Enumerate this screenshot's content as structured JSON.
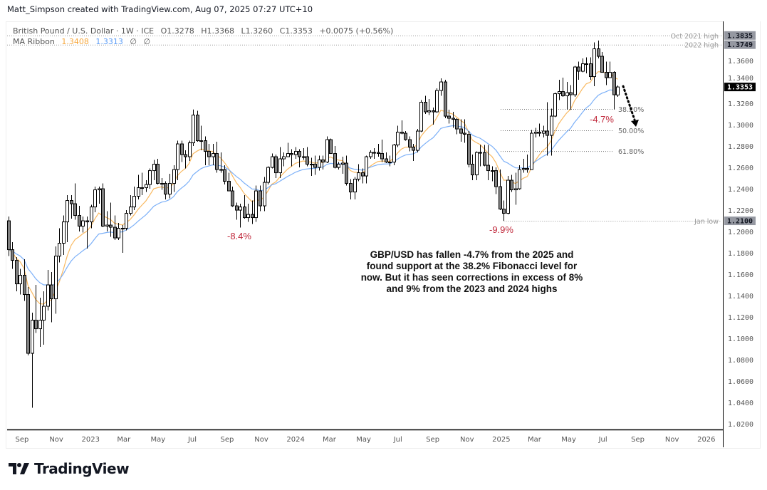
{
  "header": {
    "credit": "Matt_Simpson created with TradingView.com, Aug 07, 2025 07:27 UTC+10"
  },
  "legend": {
    "symbol": "British Pound / U.S. Dollar · 1W · ICE",
    "open": "O1.3278",
    "high": "H1.3368",
    "low": "L1.3260",
    "close": "C1.3353",
    "change": "+0.0075 (+0.56%)",
    "indicator": "MA Ribbon",
    "ma_fast": "1.3408",
    "ma_slow": "1.3313",
    "na1": "∅",
    "na2": "∅"
  },
  "annotations": {
    "note": "GBP/USD has fallen -4.7% from the 2025 and found support at the 38.2% Fibonacci level for now. But it has seen corrections in excess of 8% and 9% from the 2023 and 2024 highs",
    "pct_2023": "-8.4%",
    "pct_2024": "-9.9%",
    "pct_2025": "-4.7%"
  },
  "logo": {
    "text": "TradingView"
  },
  "colors": {
    "ma_fast": "#f7a73a",
    "ma_slow": "#5b9cf6",
    "bear_fill": "#808080",
    "bull_fill": "#ffffff",
    "pct": "#c0283b",
    "last_price_bg": "#000000",
    "level_bg": "#9598a1"
  },
  "chart_data": {
    "type": "candlestick",
    "title": "British Pound / U.S. Dollar · 1W · ICE",
    "xlim": [
      "2022-08-13",
      "2026-02-07"
    ],
    "ylim": [
      1.0147,
      1.3967
    ],
    "grid": false,
    "last_price": "1.3353",
    "y_ticks": [
      "1.3600",
      "1.3400",
      "1.3200",
      "1.3000",
      "1.2800",
      "1.2600",
      "1.2400",
      "1.2200",
      "1.2000",
      "1.1800",
      "1.1600",
      "1.1400",
      "1.1200",
      "1.1000",
      "1.0800",
      "1.0600",
      "1.0400",
      "1.0200"
    ],
    "x_ticks": [
      {
        "label": "Sep",
        "date": "2022-09-01"
      },
      {
        "label": "Nov",
        "date": "2022-11-01"
      },
      {
        "label": "2023",
        "date": "2023-01-01"
      },
      {
        "label": "Mar",
        "date": "2023-03-01"
      },
      {
        "label": "May",
        "date": "2023-05-01"
      },
      {
        "label": "Jul",
        "date": "2023-07-01"
      },
      {
        "label": "Sep",
        "date": "2023-09-01"
      },
      {
        "label": "Nov",
        "date": "2023-11-01"
      },
      {
        "label": "2024",
        "date": "2024-01-01"
      },
      {
        "label": "Mar",
        "date": "2024-03-01"
      },
      {
        "label": "May",
        "date": "2024-05-01"
      },
      {
        "label": "Jul",
        "date": "2024-07-01"
      },
      {
        "label": "Sep",
        "date": "2024-09-01"
      },
      {
        "label": "Nov",
        "date": "2024-11-01"
      },
      {
        "label": "2025",
        "date": "2025-01-01"
      },
      {
        "label": "Mar",
        "date": "2025-03-01"
      },
      {
        "label": "May",
        "date": "2025-05-01"
      },
      {
        "label": "Jul",
        "date": "2025-07-01"
      },
      {
        "label": "Sep",
        "date": "2025-09-01"
      },
      {
        "label": "Nov",
        "date": "2025-11-01"
      },
      {
        "label": "2026",
        "date": "2026-01-01"
      }
    ],
    "levels": [
      {
        "label": "Oct 2021 high",
        "price": "1.3835",
        "full": true
      },
      {
        "label": "2022 high",
        "price": "1.3749",
        "full": true
      },
      {
        "label": "Jan low",
        "price": "1.2100",
        "full": false
      }
    ],
    "fib_levels": [
      {
        "label": "38.20%",
        "price": 1.3147
      },
      {
        "label": "50.00%",
        "price": 1.2947
      },
      {
        "label": "61.80%",
        "price": 1.2753
      }
    ],
    "candles": [
      [
        "2022-08-15",
        1.21,
        1.214,
        1.177,
        1.183
      ],
      [
        "2022-08-22",
        1.183,
        1.19,
        1.165,
        1.173
      ],
      [
        "2022-08-29",
        1.173,
        1.176,
        1.144,
        1.151
      ],
      [
        "2022-09-05",
        1.151,
        1.165,
        1.141,
        1.159
      ],
      [
        "2022-09-12",
        1.159,
        1.174,
        1.135,
        1.141
      ],
      [
        "2022-09-19",
        1.141,
        1.148,
        1.084,
        1.086
      ],
      [
        "2022-09-26",
        1.086,
        1.124,
        1.035,
        1.117
      ],
      [
        "2022-10-03",
        1.117,
        1.15,
        1.105,
        1.109
      ],
      [
        "2022-10-10",
        1.109,
        1.138,
        1.092,
        1.117
      ],
      [
        "2022-10-17",
        1.117,
        1.144,
        1.094,
        1.13
      ],
      [
        "2022-10-24",
        1.13,
        1.164,
        1.126,
        1.15
      ],
      [
        "2022-10-31",
        1.15,
        1.162,
        1.115,
        1.137
      ],
      [
        "2022-11-07",
        1.137,
        1.186,
        1.123,
        1.177
      ],
      [
        "2022-11-14",
        1.177,
        1.203,
        1.171,
        1.189
      ],
      [
        "2022-11-21",
        1.189,
        1.215,
        1.178,
        1.209
      ],
      [
        "2022-11-28",
        1.209,
        1.234,
        1.19,
        1.229
      ],
      [
        "2022-12-05",
        1.229,
        1.234,
        1.212,
        1.226
      ],
      [
        "2022-12-12",
        1.226,
        1.245,
        1.211,
        1.215
      ],
      [
        "2022-12-19",
        1.215,
        1.224,
        1.2,
        1.205
      ],
      [
        "2022-12-26",
        1.205,
        1.214,
        1.199,
        1.21
      ],
      [
        "2023-01-02",
        1.21,
        1.214,
        1.184,
        1.209
      ],
      [
        "2023-01-09",
        1.209,
        1.225,
        1.203,
        1.223
      ],
      [
        "2023-01-16",
        1.223,
        1.242,
        1.218,
        1.239
      ],
      [
        "2023-01-23",
        1.239,
        1.242,
        1.226,
        1.24
      ],
      [
        "2023-01-30",
        1.24,
        1.245,
        1.204,
        1.205
      ],
      [
        "2023-02-06",
        1.205,
        1.219,
        1.2,
        1.206
      ],
      [
        "2023-02-13",
        1.206,
        1.227,
        1.195,
        1.204
      ],
      [
        "2023-02-20",
        1.204,
        1.215,
        1.192,
        1.194
      ],
      [
        "2023-02-27",
        1.194,
        1.208,
        1.192,
        1.203
      ],
      [
        "2023-03-06",
        1.203,
        1.206,
        1.18,
        1.203
      ],
      [
        "2023-03-13",
        1.203,
        1.22,
        1.201,
        1.217
      ],
      [
        "2023-03-20",
        1.217,
        1.234,
        1.215,
        1.223
      ],
      [
        "2023-03-27",
        1.223,
        1.242,
        1.22,
        1.233
      ],
      [
        "2023-04-03",
        1.233,
        1.253,
        1.23,
        1.241
      ],
      [
        "2023-04-10",
        1.241,
        1.255,
        1.234,
        1.241
      ],
      [
        "2023-04-17",
        1.241,
        1.248,
        1.237,
        1.244
      ],
      [
        "2023-04-24",
        1.244,
        1.259,
        1.24,
        1.257
      ],
      [
        "2023-05-01",
        1.257,
        1.267,
        1.248,
        1.263
      ],
      [
        "2023-05-08",
        1.263,
        1.268,
        1.244,
        1.245
      ],
      [
        "2023-05-15",
        1.245,
        1.25,
        1.239,
        1.245
      ],
      [
        "2023-05-22",
        1.245,
        1.247,
        1.23,
        1.235
      ],
      [
        "2023-05-29",
        1.235,
        1.254,
        1.231,
        1.245
      ],
      [
        "2023-06-05",
        1.245,
        1.262,
        1.237,
        1.258
      ],
      [
        "2023-06-12",
        1.258,
        1.285,
        1.248,
        1.282
      ],
      [
        "2023-06-19",
        1.282,
        1.285,
        1.265,
        1.272
      ],
      [
        "2023-06-26",
        1.272,
        1.276,
        1.259,
        1.27
      ],
      [
        "2023-07-03",
        1.27,
        1.285,
        1.266,
        1.283
      ],
      [
        "2023-07-10",
        1.283,
        1.3142,
        1.28,
        1.309
      ],
      [
        "2023-07-17",
        1.309,
        1.313,
        1.284,
        1.285
      ],
      [
        "2023-07-24",
        1.285,
        1.299,
        1.276,
        1.285
      ],
      [
        "2023-07-31",
        1.285,
        1.289,
        1.262,
        1.275
      ],
      [
        "2023-08-07",
        1.275,
        1.282,
        1.262,
        1.27
      ],
      [
        "2023-08-14",
        1.27,
        1.282,
        1.262,
        1.273
      ],
      [
        "2023-08-21",
        1.273,
        1.284,
        1.255,
        1.258
      ],
      [
        "2023-08-28",
        1.258,
        1.274,
        1.255,
        1.258
      ],
      [
        "2023-09-04",
        1.258,
        1.262,
        1.244,
        1.247
      ],
      [
        "2023-09-11",
        1.247,
        1.255,
        1.238,
        1.238
      ],
      [
        "2023-09-18",
        1.238,
        1.242,
        1.223,
        1.224
      ],
      [
        "2023-09-25",
        1.224,
        1.227,
        1.211,
        1.22
      ],
      [
        "2023-10-02",
        1.22,
        1.226,
        1.2037,
        1.223
      ],
      [
        "2023-10-09",
        1.223,
        1.234,
        1.212,
        1.213
      ],
      [
        "2023-10-16",
        1.213,
        1.226,
        1.209,
        1.216
      ],
      [
        "2023-10-23",
        1.216,
        1.229,
        1.207,
        1.213
      ],
      [
        "2023-10-30",
        1.213,
        1.243,
        1.209,
        1.238
      ],
      [
        "2023-11-06",
        1.238,
        1.243,
        1.219,
        1.224
      ],
      [
        "2023-11-13",
        1.224,
        1.251,
        1.219,
        1.246
      ],
      [
        "2023-11-20",
        1.246,
        1.261,
        1.244,
        1.26
      ],
      [
        "2023-11-27",
        1.26,
        1.273,
        1.259,
        1.27
      ],
      [
        "2023-12-04",
        1.27,
        1.272,
        1.25,
        1.255
      ],
      [
        "2023-12-11",
        1.255,
        1.279,
        1.25,
        1.268
      ],
      [
        "2023-12-18",
        1.268,
        1.274,
        1.261,
        1.27
      ],
      [
        "2023-12-25",
        1.27,
        1.283,
        1.27,
        1.273
      ],
      [
        "2024-01-01",
        1.273,
        1.277,
        1.261,
        1.272
      ],
      [
        "2024-01-08",
        1.272,
        1.279,
        1.268,
        1.275
      ],
      [
        "2024-01-15",
        1.275,
        1.277,
        1.26,
        1.27
      ],
      [
        "2024-01-22",
        1.27,
        1.278,
        1.267,
        1.27
      ],
      [
        "2024-01-29",
        1.27,
        1.279,
        1.261,
        1.263
      ],
      [
        "2024-02-05",
        1.263,
        1.269,
        1.252,
        1.263
      ],
      [
        "2024-02-12",
        1.263,
        1.271,
        1.253,
        1.26
      ],
      [
        "2024-02-19",
        1.26,
        1.271,
        1.257,
        1.267
      ],
      [
        "2024-02-26",
        1.267,
        1.271,
        1.258,
        1.265
      ],
      [
        "2024-03-04",
        1.265,
        1.289,
        1.264,
        1.286
      ],
      [
        "2024-03-11",
        1.286,
        1.287,
        1.273,
        1.273
      ],
      [
        "2024-03-18",
        1.273,
        1.28,
        1.259,
        1.26
      ],
      [
        "2024-03-25",
        1.26,
        1.265,
        1.258,
        1.263
      ],
      [
        "2024-04-01",
        1.263,
        1.27,
        1.254,
        1.264
      ],
      [
        "2024-04-08",
        1.264,
        1.271,
        1.243,
        1.245
      ],
      [
        "2024-04-15",
        1.245,
        1.249,
        1.23,
        1.237
      ],
      [
        "2024-04-22",
        1.237,
        1.251,
        1.23,
        1.249
      ],
      [
        "2024-04-29",
        1.249,
        1.263,
        1.247,
        1.255
      ],
      [
        "2024-05-06",
        1.255,
        1.259,
        1.245,
        1.252
      ],
      [
        "2024-05-13",
        1.252,
        1.271,
        1.245,
        1.27
      ],
      [
        "2024-05-20",
        1.27,
        1.276,
        1.268,
        1.274
      ],
      [
        "2024-05-27",
        1.274,
        1.278,
        1.268,
        1.274
      ],
      [
        "2024-06-03",
        1.274,
        1.282,
        1.27,
        1.273
      ],
      [
        "2024-06-10",
        1.273,
        1.286,
        1.265,
        1.268
      ],
      [
        "2024-06-17",
        1.268,
        1.274,
        1.264,
        1.265
      ],
      [
        "2024-06-24",
        1.265,
        1.271,
        1.261,
        1.265
      ],
      [
        "2024-07-01",
        1.265,
        1.282,
        1.262,
        1.281
      ],
      [
        "2024-07-08",
        1.281,
        1.299,
        1.279,
        1.293
      ],
      [
        "2024-07-15",
        1.293,
        1.304,
        1.291,
        1.292
      ],
      [
        "2024-07-22",
        1.292,
        1.294,
        1.285,
        1.286
      ],
      [
        "2024-07-29",
        1.286,
        1.289,
        1.275,
        1.279
      ],
      [
        "2024-08-05",
        1.279,
        1.282,
        1.266,
        1.276
      ],
      [
        "2024-08-12",
        1.276,
        1.296,
        1.274,
        1.294
      ],
      [
        "2024-08-19",
        1.294,
        1.323,
        1.293,
        1.321
      ],
      [
        "2024-08-26",
        1.321,
        1.327,
        1.31,
        1.312
      ],
      [
        "2024-09-02",
        1.312,
        1.324,
        1.309,
        1.313
      ],
      [
        "2024-09-09",
        1.313,
        1.316,
        1.3,
        1.312
      ],
      [
        "2024-09-16",
        1.312,
        1.334,
        1.311,
        1.332
      ],
      [
        "2024-09-23",
        1.332,
        1.3434,
        1.327,
        1.34
      ],
      [
        "2024-09-30",
        1.34,
        1.342,
        1.306,
        1.308
      ],
      [
        "2024-10-07",
        1.308,
        1.314,
        1.301,
        1.306
      ],
      [
        "2024-10-14",
        1.306,
        1.312,
        1.297,
        1.305
      ],
      [
        "2024-10-21",
        1.305,
        1.306,
        1.291,
        1.296
      ],
      [
        "2024-10-28",
        1.296,
        1.305,
        1.284,
        1.292
      ],
      [
        "2024-11-04",
        1.292,
        1.305,
        1.283,
        1.291
      ],
      [
        "2024-11-11",
        1.291,
        1.294,
        1.26,
        1.263
      ],
      [
        "2024-11-18",
        1.263,
        1.272,
        1.248,
        1.253
      ],
      [
        "2024-11-25",
        1.253,
        1.275,
        1.248,
        1.274
      ],
      [
        "2024-12-02",
        1.274,
        1.281,
        1.261,
        1.274
      ],
      [
        "2024-12-09",
        1.274,
        1.281,
        1.261,
        1.262
      ],
      [
        "2024-12-16",
        1.262,
        1.281,
        1.248,
        1.257
      ],
      [
        "2024-12-23",
        1.257,
        1.261,
        1.247,
        1.257
      ],
      [
        "2024-12-30",
        1.257,
        1.26,
        1.235,
        1.242
      ],
      [
        "2025-01-06",
        1.242,
        1.258,
        1.22,
        1.221
      ],
      [
        "2025-01-13",
        1.221,
        1.229,
        1.21,
        1.217
      ],
      [
        "2025-01-20",
        1.217,
        1.252,
        1.216,
        1.248
      ],
      [
        "2025-01-27",
        1.248,
        1.253,
        1.237,
        1.239
      ],
      [
        "2025-02-03",
        1.239,
        1.255,
        1.225,
        1.24
      ],
      [
        "2025-02-10",
        1.24,
        1.262,
        1.239,
        1.258
      ],
      [
        "2025-02-17",
        1.258,
        1.268,
        1.255,
        1.259
      ],
      [
        "2025-02-24",
        1.259,
        1.272,
        1.255,
        1.258
      ],
      [
        "2025-03-03",
        1.258,
        1.295,
        1.258,
        1.292
      ],
      [
        "2025-03-10",
        1.292,
        1.297,
        1.288,
        1.293
      ],
      [
        "2025-03-17",
        1.293,
        1.301,
        1.289,
        1.292
      ],
      [
        "2025-03-24",
        1.292,
        1.299,
        1.288,
        1.294
      ],
      [
        "2025-03-31",
        1.294,
        1.321,
        1.271,
        1.29
      ],
      [
        "2025-04-07",
        1.29,
        1.315,
        1.271,
        1.308
      ],
      [
        "2025-04-14",
        1.308,
        1.33,
        1.307,
        1.329
      ],
      [
        "2025-04-21",
        1.329,
        1.342,
        1.323,
        1.331
      ],
      [
        "2025-04-28",
        1.331,
        1.344,
        1.326,
        1.327
      ],
      [
        "2025-05-05",
        1.327,
        1.34,
        1.314,
        1.33
      ],
      [
        "2025-05-12",
        1.33,
        1.337,
        1.314,
        1.328
      ],
      [
        "2025-05-19",
        1.328,
        1.355,
        1.326,
        1.354
      ],
      [
        "2025-05-26",
        1.354,
        1.359,
        1.342,
        1.35
      ],
      [
        "2025-06-02",
        1.35,
        1.362,
        1.349,
        1.357
      ],
      [
        "2025-06-09",
        1.357,
        1.363,
        1.348,
        1.357
      ],
      [
        "2025-06-16",
        1.357,
        1.363,
        1.342,
        1.345
      ],
      [
        "2025-06-23",
        1.345,
        1.377,
        1.336,
        1.371
      ],
      [
        "2025-06-30",
        1.371,
        1.3788,
        1.362,
        1.364
      ],
      [
        "2025-07-07",
        1.364,
        1.368,
        1.349,
        1.349
      ],
      [
        "2025-07-14",
        1.349,
        1.359,
        1.337,
        1.344
      ],
      [
        "2025-07-21",
        1.344,
        1.359,
        1.344,
        1.349
      ],
      [
        "2025-07-28",
        1.349,
        1.35,
        1.3142,
        1.328
      ],
      [
        "2025-08-04",
        1.3278,
        1.3368,
        1.326,
        1.3353
      ]
    ]
  }
}
